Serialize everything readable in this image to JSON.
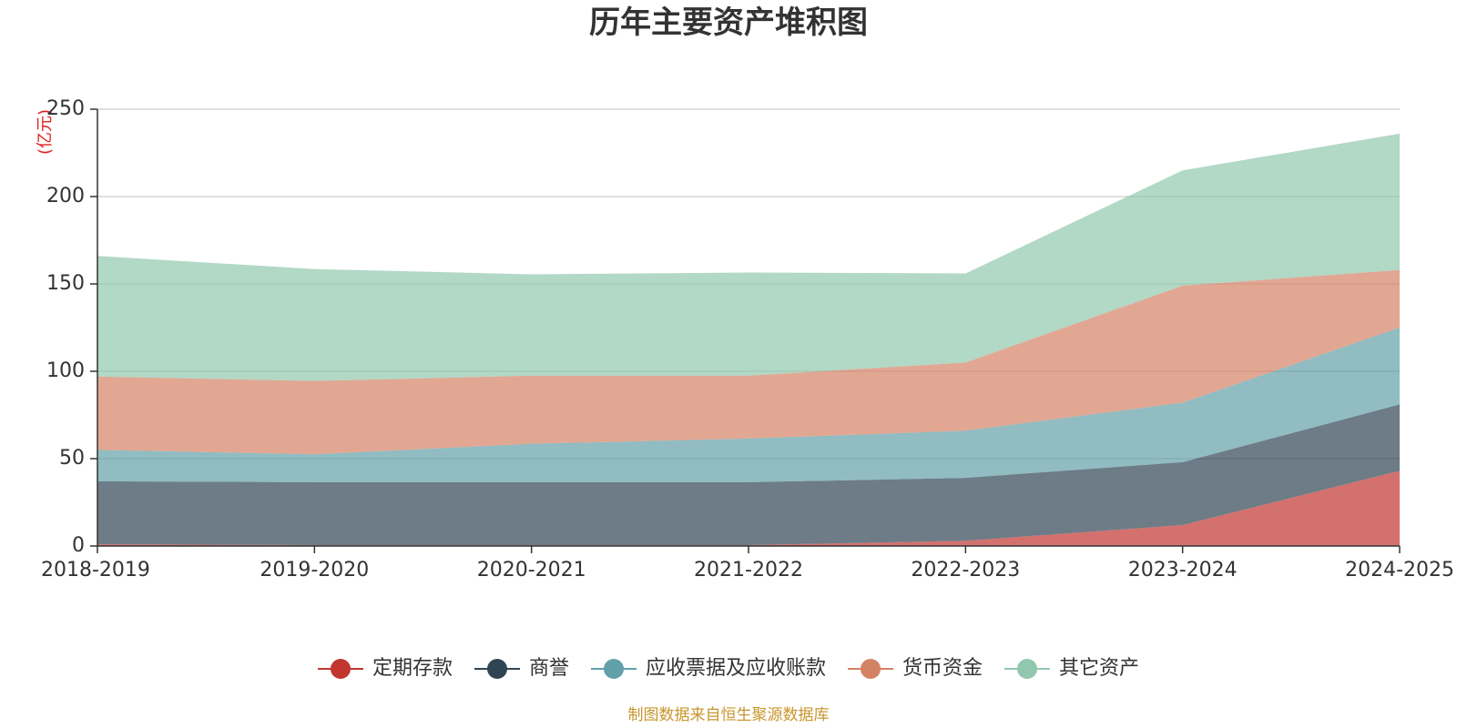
{
  "chart_data": {
    "type": "area",
    "stacked": true,
    "title": "历年主要资产堆积图",
    "unit_label": "(亿元)",
    "source_note": "制图数据来自恒生聚源数据库",
    "categories": [
      "2018-2019",
      "2019-2020",
      "2020-2021",
      "2021-2022",
      "2022-2023",
      "2023-2024",
      "2024-2025"
    ],
    "ylim": [
      0,
      250
    ],
    "yticks": [
      0,
      50,
      100,
      150,
      200,
      250
    ],
    "grid": true,
    "legend_position": "bottom",
    "series": [
      {
        "name": "定期存款",
        "color": "#c23531",
        "values": [
          1,
          0.5,
          0.5,
          0.5,
          3,
          12,
          43
        ]
      },
      {
        "name": "商誉",
        "color": "#2f4554",
        "values": [
          36,
          36,
          36,
          36,
          36,
          36,
          38
        ]
      },
      {
        "name": "应收票据及应收账款",
        "color": "#61a0a8",
        "values": [
          18,
          16,
          22,
          25,
          27,
          34,
          44
        ]
      },
      {
        "name": "货币资金",
        "color": "#d48265",
        "values": [
          42,
          42,
          39,
          36,
          39,
          67,
          33
        ]
      },
      {
        "name": "其它资产",
        "color": "#91c7ae",
        "values": [
          69,
          64,
          58,
          59,
          51,
          66,
          78
        ]
      }
    ]
  }
}
